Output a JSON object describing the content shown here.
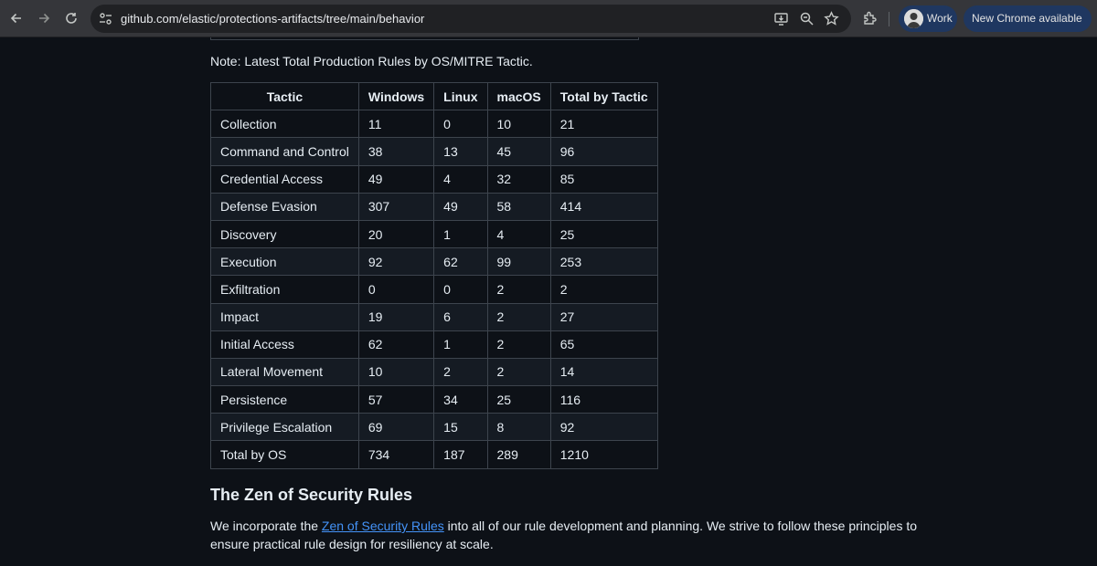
{
  "browser": {
    "url": "github.com/elastic/protections-artifacts/tree/main/behavior",
    "profile_label": "Work",
    "update_label": "New Chrome available",
    "icons": [
      "back-arrow-icon",
      "forward-arrow-icon",
      "reload-icon",
      "site-info-icon",
      "install-app-icon",
      "zoom-icon",
      "bookmark-star-icon",
      "extensions-puzzle-icon"
    ]
  },
  "page": {
    "note": "Note: Latest Total Production Rules by OS/MITRE Tactic.",
    "table": {
      "headers": [
        "Tactic",
        "Windows",
        "Linux",
        "macOS",
        "Total by Tactic"
      ],
      "rows": [
        [
          "Collection",
          "11",
          "0",
          "10",
          "21"
        ],
        [
          "Command and Control",
          "38",
          "13",
          "45",
          "96"
        ],
        [
          "Credential Access",
          "49",
          "4",
          "32",
          "85"
        ],
        [
          "Defense Evasion",
          "307",
          "49",
          "58",
          "414"
        ],
        [
          "Discovery",
          "20",
          "1",
          "4",
          "25"
        ],
        [
          "Execution",
          "92",
          "62",
          "99",
          "253"
        ],
        [
          "Exfiltration",
          "0",
          "0",
          "2",
          "2"
        ],
        [
          "Impact",
          "19",
          "6",
          "2",
          "27"
        ],
        [
          "Initial Access",
          "62",
          "1",
          "2",
          "65"
        ],
        [
          "Lateral Movement",
          "10",
          "2",
          "2",
          "14"
        ],
        [
          "Persistence",
          "57",
          "34",
          "25",
          "116"
        ],
        [
          "Privilege Escalation",
          "69",
          "15",
          "8",
          "92"
        ],
        [
          "Total by OS",
          "734",
          "187",
          "289",
          "1210"
        ]
      ]
    },
    "section_heading": "The Zen of Security Rules",
    "paragraph": {
      "before_link": "We incorporate the ",
      "link_text": "Zen of Security Rules",
      "after_link": " into all of our rule development and planning. We strive to follow these principles to ensure practical rule design for resiliency at scale."
    }
  },
  "colors": {
    "page_bg": "#0d1117",
    "toolbar_bg": "#35363a",
    "omnibox_bg": "#202124",
    "chip_bg": "#1f3760",
    "link": "#4493f8",
    "table_border": "#3d444d",
    "row_alt": "#151b23"
  }
}
